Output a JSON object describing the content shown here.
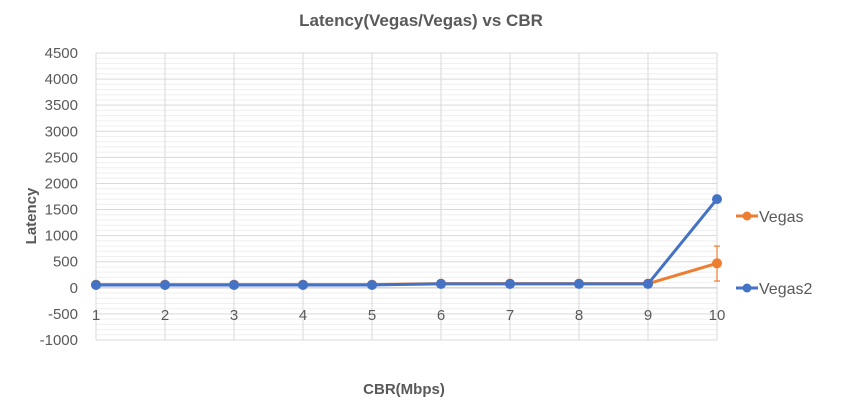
{
  "chart_data": {
    "type": "line",
    "title": "Latency(Vegas/Vegas) vs CBR",
    "xlabel": "CBR(Mbps)",
    "ylabel": "Latency",
    "categories": [
      "1",
      "2",
      "3",
      "4",
      "5",
      "6",
      "7",
      "8",
      "9",
      "10"
    ],
    "ylim": [
      -1000,
      4500
    ],
    "yticks": [
      4500,
      4000,
      3500,
      3000,
      2500,
      2000,
      1500,
      1000,
      500,
      0,
      -500,
      -1000
    ],
    "grid": true,
    "legend_position": "right",
    "series": [
      {
        "name": "Vegas",
        "color": "#ed7d31",
        "values": [
          60,
          60,
          60,
          60,
          60,
          80,
          80,
          80,
          80,
          470
        ],
        "error_bar": {
          "index": 9,
          "low": 130,
          "high": 800
        }
      },
      {
        "name": "Vegas2",
        "color": "#4472c4",
        "values": [
          55,
          55,
          55,
          55,
          55,
          75,
          75,
          75,
          75,
          1700
        ]
      }
    ]
  }
}
